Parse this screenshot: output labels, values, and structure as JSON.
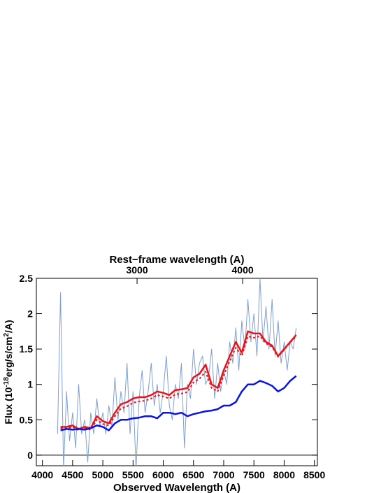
{
  "chart_data": {
    "type": "line",
    "title": "Rest−frame wavelength (A)",
    "xlabel": "Observed Wavelength (A)",
    "ylabel": [
      "Flux (10",
      "-18",
      "erg/s/cm",
      "2",
      "/A)"
    ],
    "xlim": [
      3900,
      8550
    ],
    "xticks": [
      4000,
      4500,
      5000,
      5500,
      6000,
      6500,
      7000,
      7500,
      8000,
      8500
    ],
    "ylim": [
      -0.15,
      2.5
    ],
    "yticks": [
      0,
      0.5,
      1,
      1.5,
      2,
      2.5
    ],
    "x2lim": [
      2046,
      4708
    ],
    "x2ticks": [
      3000,
      4000
    ],
    "hline": 0,
    "series": [
      {
        "color": "#7f9fd4",
        "width": 1,
        "dash": "solid",
        "x": [
          4250,
          4300,
          4350,
          4400,
          4450,
          4500,
          4550,
          4600,
          4650,
          4700,
          4750,
          4800,
          4850,
          4900,
          4950,
          5000,
          5050,
          5100,
          5150,
          5200,
          5250,
          5300,
          5350,
          5400,
          5450,
          5500,
          5550,
          5600,
          5650,
          5700,
          5750,
          5800,
          5850,
          5900,
          5950,
          6000,
          6050,
          6100,
          6150,
          6200,
          6250,
          6300,
          6350,
          6400,
          6450,
          6500,
          6550,
          6600,
          6650,
          6700,
          6750,
          6800,
          6850,
          6900,
          6950,
          7000,
          7050,
          7100,
          7150,
          7200,
          7250,
          7300,
          7350,
          7400,
          7450,
          7500,
          7550,
          7600,
          7650,
          7700,
          7750,
          7800,
          7850,
          7900,
          7950,
          8000,
          8050,
          8100,
          8150,
          8200
        ],
        "values": [
          0.3,
          2.3,
          -0.2,
          0.9,
          0.2,
          0.6,
          0.1,
          1.0,
          0.3,
          0.5,
          -0.1,
          0.6,
          0.3,
          0.8,
          0.4,
          0.6,
          0.3,
          0.7,
          0.4,
          1.1,
          0.5,
          0.9,
          0.6,
          1.3,
          0.3,
          0.9,
          -0.2,
          0.8,
          1.2,
          0.6,
          0.9,
          1.3,
          0.7,
          1.0,
          0.6,
          0.9,
          1.4,
          0.7,
          0.5,
          1.0,
          0.8,
          1.3,
          0.1,
          1.0,
          0.8,
          1.5,
          1.0,
          1.3,
          1.4,
          1.0,
          1.1,
          1.5,
          0.8,
          1.3,
          0.9,
          1.2,
          1.0,
          1.6,
          1.3,
          1.8,
          1.2,
          1.9,
          1.5,
          2.2,
          1.6,
          2.0,
          1.4,
          2.5,
          1.6,
          2.1,
          1.5,
          2.2,
          1.4,
          1.9,
          1.3,
          1.6,
          1.2,
          1.6,
          1.5,
          1.8
        ]
      },
      {
        "color": "#e8151b",
        "width": 2.5,
        "dash": "solid",
        "x": [
          4300,
          4400,
          4500,
          4600,
          4700,
          4800,
          4900,
          5000,
          5100,
          5200,
          5300,
          5400,
          5500,
          5600,
          5700,
          5800,
          5900,
          6000,
          6100,
          6200,
          6300,
          6400,
          6500,
          6600,
          6700,
          6800,
          6900,
          7000,
          7100,
          7200,
          7300,
          7400,
          7500,
          7600,
          7700,
          7800,
          7900,
          8000,
          8100,
          8200
        ],
        "values": [
          0.4,
          0.4,
          0.42,
          0.37,
          0.4,
          0.38,
          0.55,
          0.48,
          0.45,
          0.6,
          0.72,
          0.75,
          0.8,
          0.82,
          0.82,
          0.85,
          0.9,
          0.88,
          0.85,
          0.92,
          0.93,
          0.95,
          1.1,
          1.15,
          1.28,
          1.0,
          0.95,
          1.2,
          1.4,
          1.6,
          1.45,
          1.75,
          1.72,
          1.72,
          1.6,
          1.55,
          1.4,
          1.5,
          1.6,
          1.7
        ]
      },
      {
        "color": "#e8151b",
        "width": 2,
        "dash": "dotted",
        "x": [
          4300,
          4400,
          4500,
          4600,
          4700,
          4800,
          4900,
          5000,
          5100,
          5200,
          5300,
          5400,
          5500,
          5600,
          5700,
          5800,
          5900,
          6000,
          6100,
          6200,
          6300,
          6400,
          6500,
          6600,
          6700,
          6800,
          6900,
          7000,
          7100,
          7200,
          7300,
          7400,
          7500,
          7600,
          7700,
          7800,
          7900,
          8000,
          8100,
          8200
        ],
        "values": [
          0.38,
          0.38,
          0.4,
          0.35,
          0.38,
          0.36,
          0.5,
          0.44,
          0.42,
          0.55,
          0.66,
          0.69,
          0.74,
          0.76,
          0.77,
          0.8,
          0.85,
          0.83,
          0.8,
          0.86,
          0.87,
          0.89,
          1.03,
          1.08,
          1.18,
          0.95,
          0.9,
          1.13,
          1.33,
          1.52,
          1.4,
          1.68,
          1.66,
          1.68,
          1.58,
          1.53,
          1.39,
          1.49,
          1.59,
          1.68
        ]
      },
      {
        "color": "#0a14e0",
        "width": 2.5,
        "dash": "solid",
        "x": [
          4300,
          4400,
          4500,
          4600,
          4700,
          4800,
          4900,
          5000,
          5100,
          5200,
          5300,
          5400,
          5500,
          5600,
          5700,
          5800,
          5900,
          6000,
          6100,
          6200,
          6300,
          6400,
          6500,
          6600,
          6700,
          6800,
          6900,
          7000,
          7100,
          7200,
          7300,
          7400,
          7500,
          7600,
          7700,
          7800,
          7900,
          8000,
          8100,
          8200
        ],
        "values": [
          0.35,
          0.37,
          0.36,
          0.37,
          0.36,
          0.38,
          0.42,
          0.4,
          0.35,
          0.45,
          0.5,
          0.5,
          0.52,
          0.53,
          0.55,
          0.55,
          0.52,
          0.6,
          0.6,
          0.58,
          0.6,
          0.55,
          0.58,
          0.6,
          0.62,
          0.63,
          0.65,
          0.7,
          0.7,
          0.75,
          0.9,
          1.0,
          1.0,
          1.05,
          1.02,
          0.98,
          0.9,
          0.95,
          1.05,
          1.12
        ]
      }
    ]
  }
}
